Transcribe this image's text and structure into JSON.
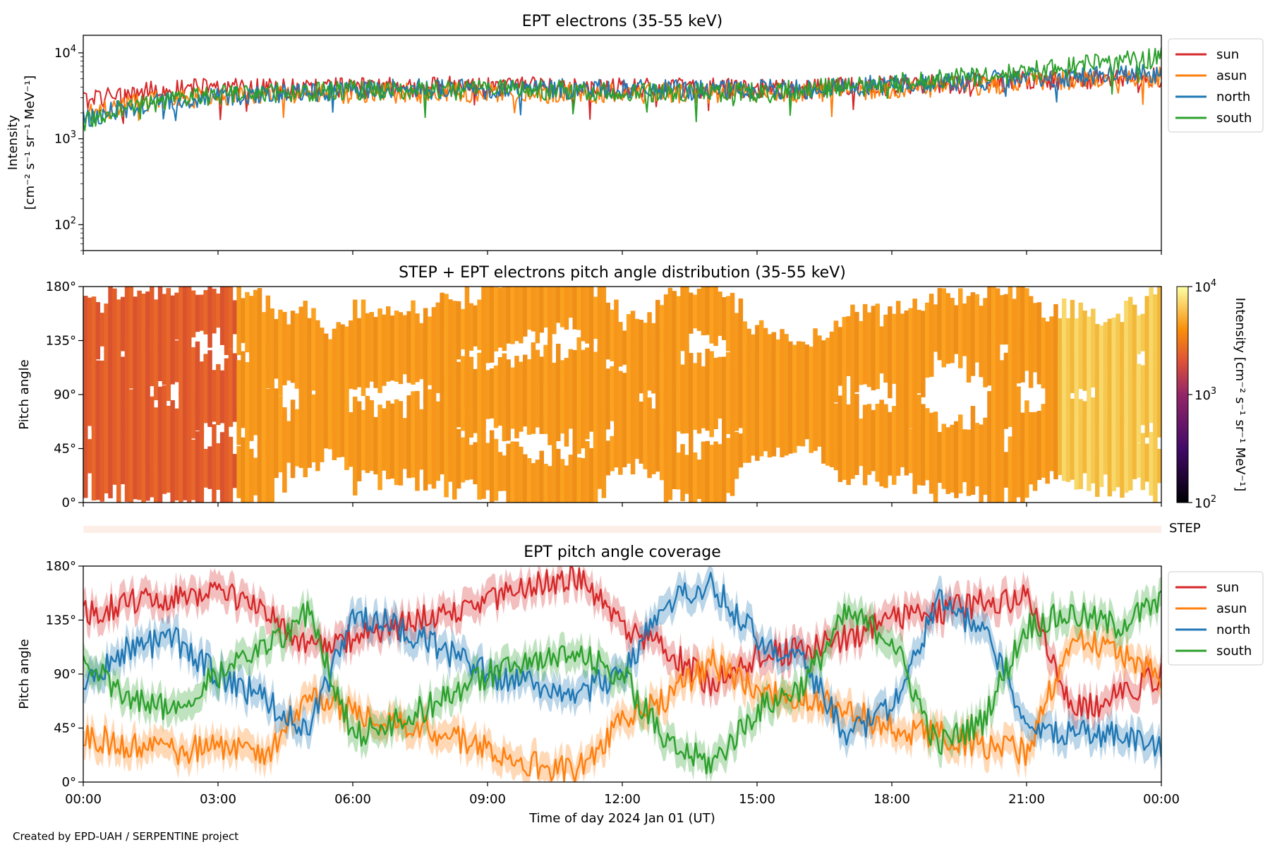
{
  "credit": "Created by EPD-UAH / SERPENTINE project",
  "xaxis": {
    "label": "Time of day 2024 Jan 01 (UT)",
    "ticks": [
      "00:00",
      "03:00",
      "06:00",
      "09:00",
      "12:00",
      "15:00",
      "18:00",
      "21:00",
      "00:00"
    ],
    "range_hours": [
      0,
      24
    ]
  },
  "colors": {
    "sun": "#d62728",
    "asun": "#ff7f0e",
    "north": "#1f77b4",
    "south": "#2ca02c"
  },
  "chart_data": [
    {
      "id": "intensity",
      "type": "line",
      "title": "EPT electrons (35-55 keV)",
      "ylabel_line1": "Intensity",
      "ylabel_line2": "[cm⁻² s⁻¹ sr⁻¹ MeV⁻¹]",
      "yscale": "log",
      "ylim": [
        50,
        16000
      ],
      "yticks": [
        {
          "value": 100,
          "base": "10",
          "exp": "2"
        },
        {
          "value": 1000,
          "base": "10",
          "exp": "3"
        },
        {
          "value": 10000,
          "base": "10",
          "exp": "4"
        }
      ],
      "legend": [
        "sun",
        "asun",
        "north",
        "south"
      ],
      "legend_placement": "right",
      "series": [
        {
          "name": "sun",
          "color": "#d62728",
          "x_hours": [
            0,
            1,
            2,
            3,
            4,
            5,
            6,
            7,
            8,
            9,
            10,
            11,
            12,
            13,
            14,
            15,
            16,
            17,
            18,
            19,
            20,
            21,
            22,
            23,
            24
          ],
          "values": [
            2800,
            3400,
            3700,
            3900,
            3800,
            3900,
            4000,
            4000,
            4100,
            4000,
            4000,
            3900,
            3900,
            3900,
            3900,
            3800,
            3800,
            4000,
            4200,
            4300,
            4500,
            4700,
            4900,
            5000,
            5200
          ]
        },
        {
          "name": "asun",
          "color": "#ff7f0e",
          "x_hours": [
            0,
            1,
            2,
            3,
            4,
            5,
            6,
            7,
            8,
            9,
            10,
            11,
            12,
            13,
            14,
            15,
            16,
            17,
            18,
            19,
            20,
            21,
            22,
            23,
            24
          ],
          "values": [
            1900,
            2500,
            2900,
            3100,
            3200,
            3300,
            3400,
            3400,
            3400,
            3500,
            3400,
            3400,
            3400,
            3400,
            3400,
            3400,
            3500,
            3600,
            3800,
            4000,
            4200,
            4600,
            4900,
            5200,
            5200
          ]
        },
        {
          "name": "north",
          "color": "#1f77b4",
          "x_hours": [
            0,
            1,
            2,
            3,
            4,
            5,
            6,
            7,
            8,
            9,
            10,
            11,
            12,
            13,
            14,
            15,
            16,
            17,
            18,
            19,
            20,
            21,
            22,
            23,
            24
          ],
          "values": [
            1600,
            2300,
            2800,
            3100,
            3300,
            3500,
            3700,
            3800,
            3800,
            3800,
            3800,
            3800,
            3700,
            3700,
            3700,
            3700,
            3800,
            4000,
            4300,
            4500,
            4700,
            5000,
            5300,
            5600,
            5800
          ]
        },
        {
          "name": "south",
          "color": "#2ca02c",
          "x_hours": [
            0,
            1,
            2,
            3,
            4,
            5,
            6,
            7,
            8,
            9,
            10,
            11,
            12,
            13,
            14,
            15,
            16,
            17,
            18,
            19,
            20,
            21,
            22,
            23,
            24
          ],
          "values": [
            1500,
            2300,
            2800,
            3200,
            3400,
            3500,
            3700,
            3700,
            3700,
            3700,
            3700,
            3600,
            3600,
            3500,
            3500,
            3500,
            3700,
            4000,
            4400,
            4800,
            5300,
            6000,
            6900,
            7800,
            8800
          ]
        }
      ]
    },
    {
      "id": "pad",
      "type": "heatmap",
      "title": "STEP + EPT electrons pitch angle distribution (35-55 keV)",
      "ylabel": "Pitch angle",
      "ylim": [
        0,
        180
      ],
      "yticks": [
        "0°",
        "45°",
        "90°",
        "135°",
        "180°"
      ],
      "colorbar": {
        "scale": "log",
        "range": [
          100,
          10000
        ],
        "label": "Intensity [cm⁻² s⁻¹ sr⁻¹ MeV⁻¹]",
        "ticks": [
          {
            "value": 100,
            "base": "10",
            "exp": "2"
          },
          {
            "value": 1000,
            "base": "10",
            "exp": "3"
          },
          {
            "value": 10000,
            "base": "10",
            "exp": "4"
          }
        ],
        "colormap": "inferno"
      }
    },
    {
      "id": "step",
      "type": "heatmap",
      "label": "STEP"
    },
    {
      "id": "coverage",
      "type": "line",
      "title": "EPT pitch angle coverage",
      "ylabel": "Pitch angle",
      "ylim": [
        0,
        180
      ],
      "yticks": [
        "0°",
        "45°",
        "90°",
        "135°",
        "180°"
      ],
      "legend": [
        "sun",
        "asun",
        "north",
        "south"
      ],
      "legend_placement": "right",
      "series": [
        {
          "name": "sun",
          "color": "#d62728",
          "x_hours": [
            0,
            1,
            2,
            3,
            4,
            5,
            6,
            7,
            8,
            9,
            10,
            11,
            12,
            13,
            14,
            15,
            16,
            17,
            18,
            19,
            20,
            21,
            22,
            23,
            24
          ],
          "values": [
            140,
            150,
            155,
            160,
            145,
            110,
            120,
            130,
            140,
            150,
            165,
            170,
            130,
            110,
            80,
            105,
            110,
            120,
            135,
            140,
            150,
            155,
            60,
            70,
            90
          ]
        },
        {
          "name": "asun",
          "color": "#ff7f0e",
          "x_hours": [
            0,
            1,
            2,
            3,
            4,
            5,
            6,
            7,
            8,
            9,
            10,
            11,
            12,
            13,
            14,
            15,
            16,
            17,
            18,
            19,
            20,
            21,
            22,
            23,
            24
          ],
          "values": [
            40,
            30,
            25,
            30,
            20,
            70,
            60,
            50,
            40,
            30,
            15,
            10,
            50,
            70,
            100,
            75,
            70,
            60,
            45,
            40,
            30,
            25,
            120,
            110,
            90
          ]
        },
        {
          "name": "north",
          "color": "#1f77b4",
          "x_hours": [
            0,
            1,
            2,
            3,
            4,
            5,
            6,
            7,
            8,
            9,
            10,
            11,
            12,
            13,
            14,
            15,
            16,
            17,
            18,
            19,
            20,
            21,
            22,
            23,
            24
          ],
          "values": [
            80,
            110,
            120,
            90,
            70,
            40,
            140,
            130,
            110,
            90,
            80,
            75,
            90,
            150,
            165,
            120,
            100,
            40,
            60,
            150,
            130,
            50,
            40,
            40,
            30
          ]
        },
        {
          "name": "south",
          "color": "#2ca02c",
          "x_hours": [
            0,
            1,
            2,
            3,
            4,
            5,
            6,
            7,
            8,
            9,
            10,
            11,
            12,
            13,
            14,
            15,
            16,
            17,
            18,
            19,
            20,
            21,
            22,
            23,
            24
          ],
          "values": [
            100,
            70,
            60,
            90,
            110,
            140,
            40,
            50,
            70,
            90,
            100,
            105,
            90,
            30,
            15,
            60,
            80,
            140,
            120,
            30,
            50,
            130,
            140,
            130,
            150
          ]
        }
      ]
    }
  ]
}
